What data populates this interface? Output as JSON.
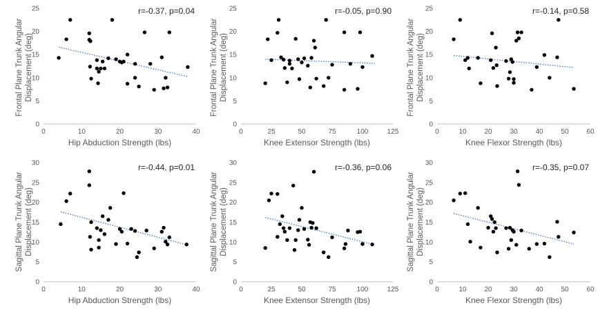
{
  "chart_data": [
    {
      "type": "scatter",
      "xlabel": "Hip Abduction Strength (lbs)",
      "ylabel": [
        "Frontal Plane Trunk Angular",
        "Displacement (deg)"
      ],
      "annotation": "r=-0.37, p=0.04",
      "xlim": [
        0,
        40
      ],
      "xticks": [
        0,
        10,
        20,
        30,
        40
      ],
      "ylim": [
        0,
        25
      ],
      "yticks": [
        0,
        5,
        10,
        15,
        20,
        25
      ],
      "trendline": {
        "x": [
          4,
          38
        ],
        "y": [
          16.6,
          10.2
        ]
      },
      "x": [
        4,
        6,
        7,
        12,
        12,
        12.2,
        12.3,
        12.5,
        14,
        14,
        14.3,
        14.5,
        15,
        15.5,
        16,
        17,
        18,
        19,
        20,
        20.5,
        21,
        22,
        22,
        24,
        24,
        25,
        26.5,
        28,
        29,
        31,
        31.5,
        32,
        32.5,
        33,
        37.8
      ],
      "y": [
        14.3,
        18.3,
        22.5,
        18.2,
        19.6,
        12.4,
        17.9,
        9.8,
        12,
        13.8,
        8.8,
        11.3,
        12,
        13.5,
        12,
        14.2,
        22.5,
        14,
        13.5,
        13.3,
        13.5,
        15,
        8.7,
        13,
        10,
        8.1,
        19.8,
        13,
        7.4,
        14.4,
        7.7,
        10,
        7.9,
        19.8,
        12.3
      ]
    },
    {
      "type": "scatter",
      "xlabel": "Knee Extensor Strength (lbs)",
      "ylabel": [
        "Frontal Plane Trunk Angular",
        "Displacement (deg)"
      ],
      "annotation": "r=-0.05, p=0.90",
      "xlim": [
        0,
        125
      ],
      "xticks": [
        0,
        25,
        50,
        75,
        100,
        125
      ],
      "ylim": [
        0,
        25
      ],
      "yticks": [
        0,
        5,
        10,
        15,
        20,
        25
      ],
      "trendline": {
        "x": [
          20,
          110
        ],
        "y": [
          14.0,
          13.1
        ]
      },
      "x": [
        20,
        22,
        25,
        30,
        31,
        33,
        35,
        36,
        38,
        40,
        40,
        42,
        45,
        47,
        48,
        50,
        52,
        55,
        57,
        58,
        60,
        61,
        62,
        68,
        70,
        72,
        75,
        85,
        85,
        90,
        96,
        98,
        100,
        108
      ],
      "y": [
        8.8,
        18.3,
        13.8,
        19.7,
        22.5,
        14.4,
        13.9,
        12.1,
        9,
        13.7,
        13,
        12,
        18.4,
        14,
        9.7,
        13.3,
        14.2,
        12.6,
        7.9,
        14.3,
        18,
        16.5,
        9.8,
        8.2,
        22.5,
        10,
        12.8,
        7.4,
        19.8,
        13,
        7.6,
        19.8,
        12.3,
        14.7
      ]
    },
    {
      "type": "scatter",
      "xlabel": "Knee Flexor Strength (lbs)",
      "ylabel": [
        "Frontal Plane Trunk Angular",
        "Displacement (deg)"
      ],
      "annotation": "r=-0.14, p=0.58",
      "xlim": [
        0,
        60
      ],
      "xticks": [
        0,
        10,
        20,
        30,
        40,
        50,
        60
      ],
      "ylim": [
        0,
        25
      ],
      "yticks": [
        0,
        5,
        10,
        15,
        20,
        25
      ],
      "trendline": {
        "x": [
          6.5,
          53.5
        ],
        "y": [
          14.8,
          12.2
        ]
      },
      "x": [
        6.5,
        9,
        11,
        12,
        12.5,
        16,
        17,
        21,
        21.5,
        22,
        23,
        23.3,
        23.5,
        27,
        28,
        28.5,
        29,
        29.5,
        30,
        30,
        31,
        31.5,
        32,
        33,
        37,
        39,
        42,
        44,
        47,
        47.5,
        53.5
      ],
      "y": [
        18.3,
        22.5,
        13.8,
        14.3,
        12,
        14.3,
        8.8,
        13.8,
        19.6,
        12.1,
        16.5,
        12.7,
        8.2,
        13.6,
        9.8,
        11.2,
        14,
        13.4,
        9.7,
        8.9,
        18,
        19.8,
        18.5,
        19.8,
        7.4,
        12.3,
        14.9,
        10,
        14.4,
        22.5,
        7.6
      ]
    },
    {
      "type": "scatter",
      "xlabel": "Hip Abduction Strength (lbs)",
      "ylabel": [
        "Sagittal Plane Trunk Angular",
        "Displacement (deg)"
      ],
      "annotation": "r=-0.44, p=0.01",
      "xlim": [
        0,
        40
      ],
      "xticks": [
        0,
        10,
        20,
        30,
        40
      ],
      "ylim": [
        0,
        30
      ],
      "yticks": [
        0,
        5,
        10,
        15,
        20,
        25,
        30
      ],
      "trendline": {
        "x": [
          4.5,
          38
        ],
        "y": [
          17.6,
          9.2
        ]
      },
      "x": [
        4.5,
        6,
        7,
        12,
        12,
        12.2,
        12.5,
        12.5,
        14,
        14.5,
        14.5,
        15,
        15.5,
        16,
        17,
        17.5,
        19,
        20,
        20.5,
        21,
        22,
        23,
        24,
        24.5,
        25,
        27,
        29,
        31,
        31.5,
        32,
        32.5,
        33,
        37.5
      ],
      "y": [
        14.5,
        20.3,
        22.2,
        27.8,
        24.3,
        11.3,
        8.1,
        15,
        13.5,
        8.6,
        10.5,
        13,
        16.5,
        12,
        15.6,
        18.6,
        9.5,
        13.3,
        12.6,
        22.3,
        9.6,
        13.3,
        12.8,
        6.2,
        7.4,
        12.9,
        8.4,
        12.6,
        13.6,
        10.1,
        9.4,
        11.2,
        9.4
      ]
    },
    {
      "type": "scatter",
      "xlabel": "Knee Extensor Strength (lbs)",
      "ylabel": [
        "Sagittal Plane Trunk Angular",
        "Displacement (deg)"
      ],
      "annotation": "r=-0.36, p=0.06",
      "xlim": [
        0,
        125
      ],
      "xticks": [
        0,
        25,
        50,
        75,
        100,
        125
      ],
      "ylim": [
        0,
        30
      ],
      "yticks": [
        0,
        5,
        10,
        15,
        20,
        25,
        30
      ],
      "trendline": {
        "x": [
          20,
          110
        ],
        "y": [
          16.2,
          9.3
        ]
      },
      "x": [
        20,
        23,
        25,
        30,
        30,
        32,
        34,
        35,
        36,
        38,
        40,
        43,
        44,
        45,
        47,
        48,
        50,
        52,
        55,
        56,
        57,
        58,
        59,
        60,
        62,
        68,
        72,
        75,
        85,
        86,
        88,
        96,
        98,
        100,
        108
      ],
      "y": [
        8.5,
        20.5,
        22.2,
        22.1,
        11.3,
        14.5,
        16.5,
        13.5,
        12.6,
        10.5,
        13.5,
        24.2,
        8,
        10.5,
        13,
        15.6,
        18.6,
        13.3,
        10.6,
        9.3,
        15,
        13.6,
        14.8,
        27.7,
        13.5,
        7.4,
        6.2,
        11.2,
        8.4,
        9.5,
        12.9,
        12.5,
        12.6,
        9.5,
        9.4
      ]
    },
    {
      "type": "scatter",
      "xlabel": "Knee Flexor Strength (lbs)",
      "ylabel": [
        "Sagittal Plane Trunk Angular",
        "Displacement (deg)"
      ],
      "annotation": "r=-0.35, p=0.07",
      "xlim": [
        0,
        60
      ],
      "xticks": [
        0,
        10,
        20,
        30,
        40,
        50,
        60
      ],
      "ylim": [
        0,
        30
      ],
      "yticks": [
        0,
        5,
        10,
        15,
        20,
        25,
        30
      ],
      "trendline": {
        "x": [
          6.5,
          53.5
        ],
        "y": [
          17.2,
          9.5
        ]
      },
      "x": [
        6.5,
        9,
        11,
        12,
        13,
        16,
        17,
        20,
        21,
        21.5,
        22,
        22.5,
        23,
        23.5,
        27,
        28,
        28.5,
        29,
        29.5,
        30,
        31,
        31.5,
        32,
        33,
        36,
        39,
        42,
        44,
        47,
        47.5,
        53.5
      ],
      "y": [
        20.5,
        22.2,
        22.3,
        14.5,
        10.1,
        18.6,
        8.6,
        13.6,
        16.5,
        15.8,
        12.6,
        15,
        13.5,
        7.4,
        13.5,
        8.3,
        13.6,
        10.5,
        13,
        12.6,
        9.3,
        27.8,
        24.4,
        12.9,
        8.3,
        9.5,
        9.6,
        6.2,
        15.1,
        11.3,
        12.4
      ]
    }
  ]
}
